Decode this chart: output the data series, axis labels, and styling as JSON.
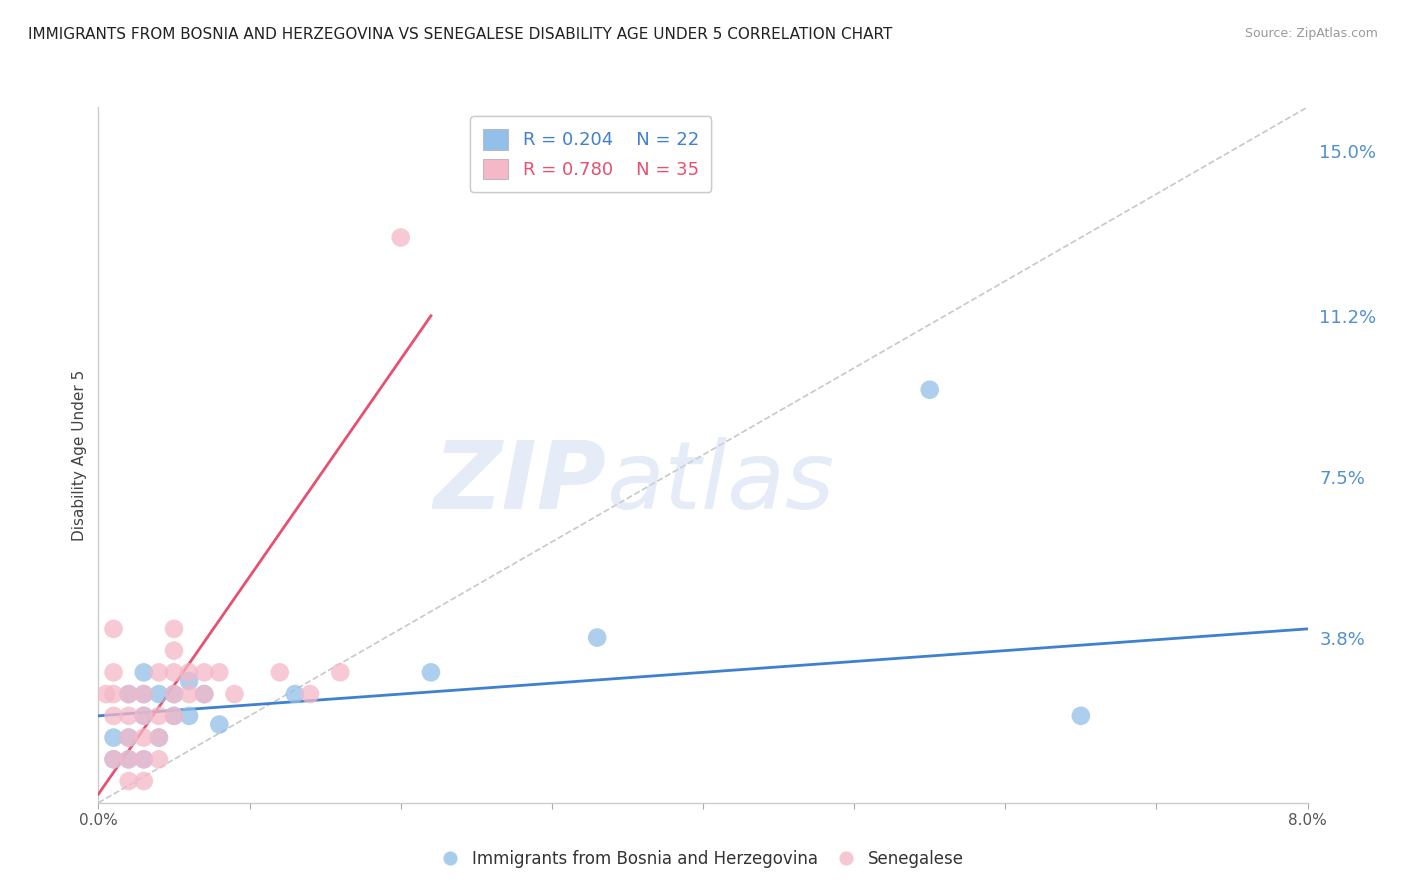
{
  "title": "IMMIGRANTS FROM BOSNIA AND HERZEGOVINA VS SENEGALESE DISABILITY AGE UNDER 5 CORRELATION CHART",
  "source": "Source: ZipAtlas.com",
  "ylabel": "Disability Age Under 5",
  "xlim": [
    0.0,
    0.08
  ],
  "ylim": [
    0.0,
    0.16
  ],
  "xtick_positions": [
    0.0,
    0.01,
    0.02,
    0.03,
    0.04,
    0.05,
    0.06,
    0.07,
    0.08
  ],
  "xtick_labels": [
    "0.0%",
    "",
    "",
    "",
    "",
    "",
    "",
    "",
    "8.0%"
  ],
  "ytick_right": [
    0.038,
    0.075,
    0.112,
    0.15
  ],
  "ytick_right_labels": [
    "3.8%",
    "7.5%",
    "11.2%",
    "15.0%"
  ],
  "watermark_zip": "ZIP",
  "watermark_atlas": "atlas",
  "legend_blue_r": "R = 0.204",
  "legend_blue_n": "N = 22",
  "legend_pink_r": "R = 0.780",
  "legend_pink_n": "N = 35",
  "blue_color": "#92c0e8",
  "pink_color": "#f5b8c8",
  "blue_line_color": "#4080d0",
  "pink_line_color": "#e85070",
  "diag_line_color": "#c8c8c8",
  "title_color": "#222222",
  "axis_label_color": "#444444",
  "right_tick_color": "#5090d0",
  "background_color": "#ffffff",
  "grid_color": "#dcdce8",
  "blue_scatter_x": [
    0.001,
    0.001,
    0.002,
    0.002,
    0.002,
    0.003,
    0.003,
    0.003,
    0.003,
    0.004,
    0.004,
    0.005,
    0.005,
    0.006,
    0.006,
    0.007,
    0.008,
    0.013,
    0.022,
    0.033,
    0.055,
    0.065
  ],
  "blue_scatter_y": [
    0.01,
    0.015,
    0.01,
    0.015,
    0.025,
    0.01,
    0.02,
    0.025,
    0.03,
    0.015,
    0.025,
    0.02,
    0.025,
    0.02,
    0.028,
    0.025,
    0.018,
    0.025,
    0.03,
    0.038,
    0.095,
    0.02
  ],
  "pink_scatter_x": [
    0.0005,
    0.001,
    0.001,
    0.001,
    0.001,
    0.001,
    0.002,
    0.002,
    0.002,
    0.002,
    0.002,
    0.003,
    0.003,
    0.003,
    0.003,
    0.003,
    0.004,
    0.004,
    0.004,
    0.004,
    0.005,
    0.005,
    0.005,
    0.005,
    0.005,
    0.006,
    0.006,
    0.007,
    0.007,
    0.008,
    0.009,
    0.012,
    0.014,
    0.016,
    0.02
  ],
  "pink_scatter_y": [
    0.025,
    0.01,
    0.02,
    0.025,
    0.03,
    0.04,
    0.005,
    0.01,
    0.015,
    0.02,
    0.025,
    0.005,
    0.01,
    0.015,
    0.02,
    0.025,
    0.01,
    0.015,
    0.02,
    0.03,
    0.02,
    0.025,
    0.03,
    0.035,
    0.04,
    0.025,
    0.03,
    0.025,
    0.03,
    0.03,
    0.025,
    0.03,
    0.025,
    0.03,
    0.13
  ],
  "blue_line_x": [
    0.0,
    0.08
  ],
  "blue_line_y": [
    0.02,
    0.04
  ],
  "pink_line_x": [
    0.0,
    0.022
  ],
  "pink_line_y": [
    0.002,
    0.112
  ],
  "diag_line_x": [
    0.0,
    0.08
  ],
  "diag_line_y": [
    0.0,
    0.16
  ]
}
